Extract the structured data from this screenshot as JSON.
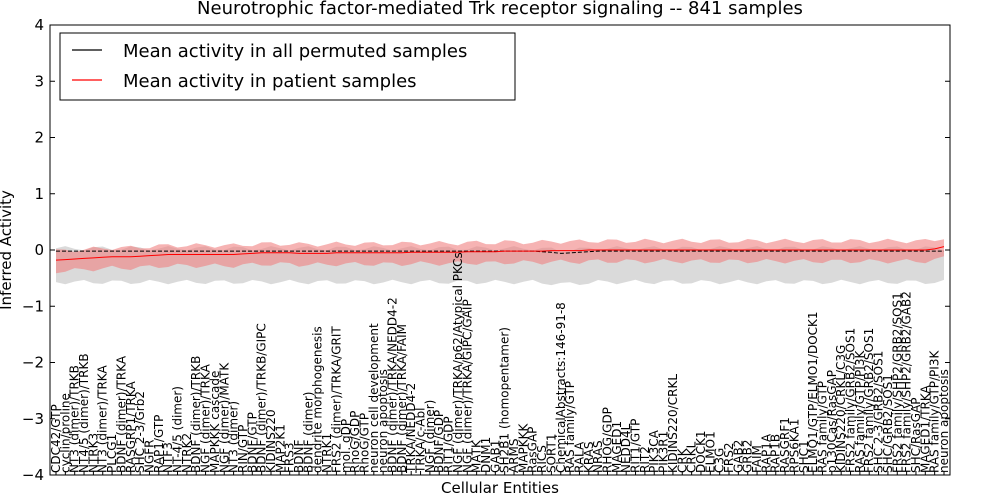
{
  "chart_data": {
    "type": "line",
    "title": "Neurotrophic factor-mediated Trk receptor signaling -- 841 samples",
    "xlabel": "Cellular Entities",
    "ylabel": "Inferred Activity",
    "ylim": [
      -4,
      4
    ],
    "yticks": [
      "4",
      "3",
      "2",
      "1",
      "0",
      "−1",
      "−2",
      "−3",
      "−4"
    ],
    "legend": {
      "position": "top-left",
      "entries": [
        {
          "label": "Mean activity in all permuted samples",
          "color": "#000000"
        },
        {
          "label": "Mean activity in patient samples",
          "color": "#ff0000"
        }
      ]
    },
    "labels": [
      "CDC42/GTP",
      "cyclin/proline",
      "NT3 (dimer)/TRKB",
      "NT4/5 (dimer)/TRKB",
      "NTRK3",
      "NT3 (dimer)/TRKA",
      "PLCG1",
      "BDNF (dimer)/TRKA",
      "RASGRP1/TRKA",
      "SHC 2-3/Grb2",
      "NGFR",
      "RAP1/GTP",
      "NTF3",
      "NT-4/5 (dimer)",
      "NTRK2",
      "BDNF (dimer)/TRKB",
      "NGF (dimer)/TRKA",
      "MAPKKK cascade",
      "NGF (dimer)/MATK",
      "NT3 (dimer)",
      "RIN/GTP",
      "BDNF/GTP",
      "BDNF (dimer)/TRKB/GIPC",
      "KIDINS220",
      "MAP2K1",
      "FRS3",
      "BDNF",
      "BDNF (dimer)",
      "dendrite morphogenesis",
      "NTRK1",
      "FRS2 (dimer)/TRKA/GRIT",
      "mol. gDP",
      "RhoG/GDP",
      "RhoG/GTP",
      "neuron cell development",
      "neuron apoptosis",
      "BDNF (dimer)/TRKA/NEDD4-2",
      "BDNF (dimer)/TRKA/FAIM",
      "TRKA/NEDD4-2",
      "TRKA/c-Abl",
      "NGF (dimer)",
      "BDNF/GDP",
      "RIT1/GDP",
      "NGF (dimer)/TRKA/p62/Atypical PKCs",
      "NGF (dimer)/TRKA/GIPC/GAIP",
      "MATK",
      "DNM1",
      "GAB1",
      "SH2B1 (homopentamer)",
      "ARMS",
      "MAPKKK",
      "RasGAP",
      "RICS",
      "SORT1",
      "ChemicalAbstracts:146-91-8",
      "RAS family/GTP",
      "RALA",
      "KRAS",
      "NRAS",
      "RHOG/GDP",
      "MAGED1",
      "NEDD4L",
      "RIT1/GTP",
      "RIT2",
      "PIK3CA",
      "PIK3R1",
      "KIDINS220/CRKL",
      "CRK",
      "CRKL",
      "DOCK1",
      "ELMO1",
      "C3G",
      "FRS2",
      "GAB2",
      "GRB2",
      "FAIM",
      "RAP1A",
      "RAP1B",
      "RASGRF1",
      "RPS6KA1",
      "SHC1",
      "ELMO1/GTP/ELMO1/DOCK1",
      "RAS family/GTP",
      "p130Cas/RasGAP",
      "KIDINS220/CRKL/C3G",
      "FRS2 family/GRB2/SOS1",
      "RAS family/GTP/PI3K",
      "FRS2 family/GRB2/SOS1",
      "SHC 2-3/GRB2/SOS1",
      "SHC/GRB2/SOS1",
      "FRS2 family/SHP2/GRB2/SOS1",
      "FRS2 family/SHP2/GRB2/GAB2",
      "SHC/RasGAP",
      "MAGED1/TRKA",
      "RAS family/GTP/PI3K",
      "neuron apoptosis"
    ],
    "series": [
      {
        "name": "Mean activity in all permuted samples",
        "color": "#000000",
        "values": [
          -0.02,
          -0.02,
          -0.02,
          -0.02,
          -0.02,
          -0.02,
          -0.02,
          -0.02,
          -0.02,
          -0.02,
          -0.02,
          -0.02,
          -0.02,
          -0.02,
          -0.02,
          -0.02,
          -0.02,
          -0.02,
          -0.02,
          -0.02,
          -0.02,
          -0.02,
          -0.02,
          -0.02,
          -0.02,
          -0.02,
          -0.02,
          -0.02,
          -0.02,
          -0.02,
          -0.02,
          -0.02,
          -0.02,
          -0.02,
          -0.02,
          -0.02,
          -0.02,
          -0.02,
          -0.02,
          -0.02,
          -0.02,
          -0.02,
          -0.02,
          -0.02,
          -0.02,
          -0.02,
          -0.02,
          -0.02,
          -0.02,
          -0.02,
          -0.02,
          -0.02,
          -0.03,
          -0.04,
          -0.06,
          -0.05,
          -0.04,
          -0.03,
          -0.02,
          -0.02,
          -0.02,
          -0.02,
          -0.02,
          -0.02,
          -0.02,
          -0.02,
          -0.02,
          -0.02,
          -0.02,
          -0.02,
          -0.02,
          -0.02,
          -0.02,
          -0.02,
          -0.02,
          -0.02,
          -0.02,
          -0.02,
          -0.02,
          -0.02,
          -0.02,
          -0.02,
          -0.02,
          -0.02,
          -0.02,
          -0.02,
          -0.02,
          -0.02,
          -0.02,
          -0.02,
          -0.02,
          -0.02,
          -0.02,
          -0.02,
          -0.02,
          -0.02
        ],
        "band": {
          "color": "#bbbbbb",
          "lower": -0.55,
          "upper": 0.05
        }
      },
      {
        "name": "Mean activity in patient samples",
        "color": "#ff0000",
        "values": [
          -0.18,
          -0.17,
          -0.16,
          -0.15,
          -0.14,
          -0.13,
          -0.12,
          -0.12,
          -0.12,
          -0.11,
          -0.1,
          -0.09,
          -0.08,
          -0.08,
          -0.08,
          -0.08,
          -0.08,
          -0.08,
          -0.08,
          -0.08,
          -0.07,
          -0.06,
          -0.05,
          -0.05,
          -0.05,
          -0.05,
          -0.06,
          -0.06,
          -0.06,
          -0.06,
          -0.05,
          -0.05,
          -0.05,
          -0.05,
          -0.05,
          -0.05,
          -0.05,
          -0.05,
          -0.04,
          -0.04,
          -0.04,
          -0.04,
          -0.04,
          -0.04,
          -0.03,
          -0.03,
          -0.03,
          -0.03,
          -0.02,
          -0.02,
          -0.02,
          -0.02,
          -0.02,
          -0.01,
          -0.01,
          -0.01,
          -0.01,
          0.0,
          0.0,
          0.0,
          0.0,
          0.0,
          0.0,
          0.0,
          0.0,
          0.0,
          0.0,
          0.0,
          0.0,
          0.0,
          0.0,
          0.0,
          0.0,
          0.0,
          0.0,
          0.0,
          0.0,
          0.0,
          0.0,
          0.0,
          0.0,
          0.0,
          0.0,
          0.0,
          0.0,
          0.0,
          0.0,
          0.0,
          0.0,
          0.0,
          0.0,
          0.0,
          0.0,
          0.0,
          0.02,
          0.06
        ],
        "band": {
          "color": "#f08080",
          "lower": -0.2,
          "upper": 0.16
        }
      }
    ]
  }
}
